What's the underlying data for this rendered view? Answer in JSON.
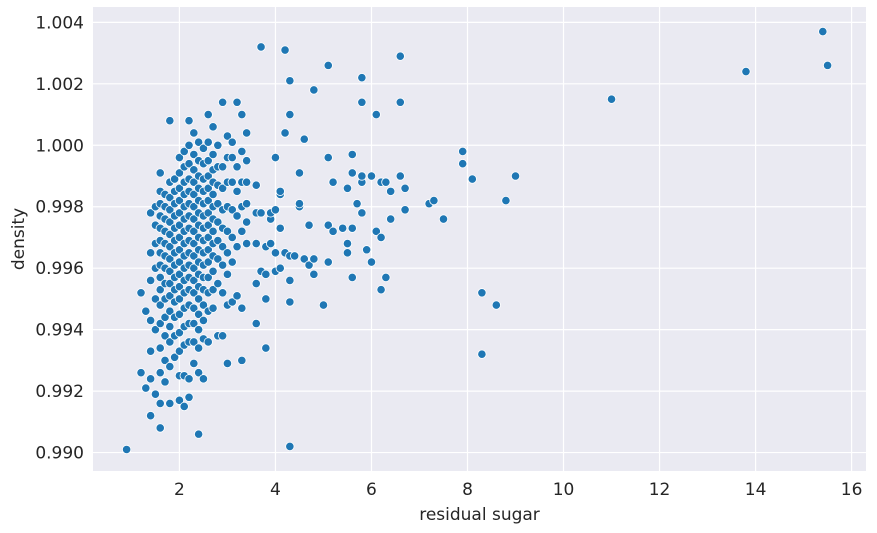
{
  "chart_data": {
    "type": "scatter",
    "title": "",
    "xlabel": "residual sugar",
    "ylabel": "density",
    "xlim": [
      0.2,
      16.3
    ],
    "ylim": [
      0.9894,
      1.0045
    ],
    "grid": true,
    "x_ticks": [
      2,
      4,
      6,
      8,
      10,
      12,
      14,
      16
    ],
    "y_ticks": [
      0.99,
      0.992,
      0.994,
      0.996,
      0.998,
      1.0,
      1.002,
      1.004
    ],
    "x_tick_labels": [
      "2",
      "4",
      "6",
      "8",
      "10",
      "12",
      "14",
      "16"
    ],
    "y_tick_labels": [
      "0.990",
      "0.992",
      "0.994",
      "0.996",
      "0.998",
      "1.000",
      "1.002",
      "1.004"
    ],
    "marker_color": "#1f77b4",
    "background_color": "#eaeaf2",
    "points": [
      [
        0.9,
        0.9901
      ],
      [
        1.2,
        0.9926
      ],
      [
        1.2,
        0.9952
      ],
      [
        1.3,
        0.9946
      ],
      [
        1.3,
        0.9921
      ],
      [
        1.4,
        0.9912
      ],
      [
        1.4,
        0.9924
      ],
      [
        1.4,
        0.9933
      ],
      [
        1.4,
        0.9943
      ],
      [
        1.4,
        0.9956
      ],
      [
        1.4,
        0.9965
      ],
      [
        1.4,
        0.9978
      ],
      [
        1.5,
        0.9919
      ],
      [
        1.5,
        0.994
      ],
      [
        1.5,
        0.995
      ],
      [
        1.5,
        0.996
      ],
      [
        1.5,
        0.9968
      ],
      [
        1.5,
        0.9974
      ],
      [
        1.5,
        0.998
      ],
      [
        1.6,
        0.9908
      ],
      [
        1.6,
        0.9916
      ],
      [
        1.6,
        0.9926
      ],
      [
        1.6,
        0.9934
      ],
      [
        1.6,
        0.9942
      ],
      [
        1.6,
        0.9948
      ],
      [
        1.6,
        0.9953
      ],
      [
        1.6,
        0.9957
      ],
      [
        1.6,
        0.9961
      ],
      [
        1.6,
        0.9965
      ],
      [
        1.6,
        0.9969
      ],
      [
        1.6,
        0.9973
      ],
      [
        1.6,
        0.9977
      ],
      [
        1.6,
        0.9981
      ],
      [
        1.6,
        0.9985
      ],
      [
        1.6,
        0.9991
      ],
      [
        1.7,
        0.9923
      ],
      [
        1.7,
        0.993
      ],
      [
        1.7,
        0.9938
      ],
      [
        1.7,
        0.9944
      ],
      [
        1.7,
        0.995
      ],
      [
        1.7,
        0.9955
      ],
      [
        1.7,
        0.996
      ],
      [
        1.7,
        0.9964
      ],
      [
        1.7,
        0.9968
      ],
      [
        1.7,
        0.9972
      ],
      [
        1.7,
        0.9976
      ],
      [
        1.7,
        0.998
      ],
      [
        1.7,
        0.9984
      ],
      [
        1.8,
        0.9916
      ],
      [
        1.8,
        0.9928
      ],
      [
        1.8,
        0.9936
      ],
      [
        1.8,
        0.9941
      ],
      [
        1.8,
        0.9946
      ],
      [
        1.8,
        0.9951
      ],
      [
        1.8,
        0.9955
      ],
      [
        1.8,
        0.9959
      ],
      [
        1.8,
        0.9963
      ],
      [
        1.8,
        0.9967
      ],
      [
        1.8,
        0.9971
      ],
      [
        1.8,
        0.9975
      ],
      [
        1.8,
        0.9979
      ],
      [
        1.8,
        0.9983
      ],
      [
        1.8,
        0.9988
      ],
      [
        1.8,
        1.0008
      ],
      [
        1.9,
        0.9931
      ],
      [
        1.9,
        0.9938
      ],
      [
        1.9,
        0.9944
      ],
      [
        1.9,
        0.9949
      ],
      [
        1.9,
        0.9953
      ],
      [
        1.9,
        0.9957
      ],
      [
        1.9,
        0.9961
      ],
      [
        1.9,
        0.9965
      ],
      [
        1.9,
        0.9969
      ],
      [
        1.9,
        0.9973
      ],
      [
        1.9,
        0.9977
      ],
      [
        1.9,
        0.9981
      ],
      [
        1.9,
        0.9985
      ],
      [
        1.9,
        0.9989
      ],
      [
        2.0,
        0.9917
      ],
      [
        2.0,
        0.9925
      ],
      [
        2.0,
        0.9933
      ],
      [
        2.0,
        0.9939
      ],
      [
        2.0,
        0.9945
      ],
      [
        2.0,
        0.995
      ],
      [
        2.0,
        0.9954
      ],
      [
        2.0,
        0.9958
      ],
      [
        2.0,
        0.9962
      ],
      [
        2.0,
        0.9966
      ],
      [
        2.0,
        0.997
      ],
      [
        2.0,
        0.9974
      ],
      [
        2.0,
        0.9978
      ],
      [
        2.0,
        0.9982
      ],
      [
        2.0,
        0.9986
      ],
      [
        2.0,
        0.9991
      ],
      [
        2.0,
        0.9996
      ],
      [
        2.1,
        0.9915
      ],
      [
        2.1,
        0.9925
      ],
      [
        2.1,
        0.9935
      ],
      [
        2.1,
        0.9941
      ],
      [
        2.1,
        0.9947
      ],
      [
        2.1,
        0.9952
      ],
      [
        2.1,
        0.9956
      ],
      [
        2.1,
        0.996
      ],
      [
        2.1,
        0.9964
      ],
      [
        2.1,
        0.9968
      ],
      [
        2.1,
        0.9972
      ],
      [
        2.1,
        0.9976
      ],
      [
        2.1,
        0.998
      ],
      [
        2.1,
        0.9984
      ],
      [
        2.1,
        0.9988
      ],
      [
        2.1,
        0.9993
      ],
      [
        2.1,
        0.9998
      ],
      [
        2.2,
        0.9918
      ],
      [
        2.2,
        0.9924
      ],
      [
        2.2,
        0.9936
      ],
      [
        2.2,
        0.9942
      ],
      [
        2.2,
        0.9948
      ],
      [
        2.2,
        0.9953
      ],
      [
        2.2,
        0.9957
      ],
      [
        2.2,
        0.9961
      ],
      [
        2.2,
        0.9965
      ],
      [
        2.2,
        0.9969
      ],
      [
        2.2,
        0.9973
      ],
      [
        2.2,
        0.9977
      ],
      [
        2.2,
        0.9981
      ],
      [
        2.2,
        0.9985
      ],
      [
        2.2,
        0.9989
      ],
      [
        2.2,
        0.9994
      ],
      [
        2.2,
        1.0
      ],
      [
        2.2,
        1.0008
      ],
      [
        2.3,
        0.9929
      ],
      [
        2.3,
        0.9936
      ],
      [
        2.3,
        0.9942
      ],
      [
        2.3,
        0.9947
      ],
      [
        2.3,
        0.9952
      ],
      [
        2.3,
        0.9956
      ],
      [
        2.3,
        0.996
      ],
      [
        2.3,
        0.9964
      ],
      [
        2.3,
        0.9968
      ],
      [
        2.3,
        0.9972
      ],
      [
        2.3,
        0.9976
      ],
      [
        2.3,
        0.998
      ],
      [
        2.3,
        0.9984
      ],
      [
        2.3,
        0.9988
      ],
      [
        2.3,
        0.9992
      ],
      [
        2.3,
        0.9997
      ],
      [
        2.3,
        1.0004
      ],
      [
        2.4,
        0.9906
      ],
      [
        2.4,
        0.9926
      ],
      [
        2.4,
        0.9934
      ],
      [
        2.4,
        0.994
      ],
      [
        2.4,
        0.9945
      ],
      [
        2.4,
        0.995
      ],
      [
        2.4,
        0.9954
      ],
      [
        2.4,
        0.9958
      ],
      [
        2.4,
        0.9962
      ],
      [
        2.4,
        0.9966
      ],
      [
        2.4,
        0.997
      ],
      [
        2.4,
        0.9974
      ],
      [
        2.4,
        0.9978
      ],
      [
        2.4,
        0.9982
      ],
      [
        2.4,
        0.9986
      ],
      [
        2.4,
        0.999
      ],
      [
        2.4,
        0.9995
      ],
      [
        2.4,
        1.0001
      ],
      [
        2.5,
        0.9924
      ],
      [
        2.5,
        0.9937
      ],
      [
        2.5,
        0.9943
      ],
      [
        2.5,
        0.9948
      ],
      [
        2.5,
        0.9953
      ],
      [
        2.5,
        0.9957
      ],
      [
        2.5,
        0.9961
      ],
      [
        2.5,
        0.9965
      ],
      [
        2.5,
        0.9969
      ],
      [
        2.5,
        0.9973
      ],
      [
        2.5,
        0.9977
      ],
      [
        2.5,
        0.9981
      ],
      [
        2.5,
        0.9985
      ],
      [
        2.5,
        0.9989
      ],
      [
        2.5,
        0.9994
      ],
      [
        2.5,
        0.9999
      ],
      [
        2.6,
        0.9936
      ],
      [
        2.6,
        0.9946
      ],
      [
        2.6,
        0.9952
      ],
      [
        2.6,
        0.9957
      ],
      [
        2.6,
        0.9962
      ],
      [
        2.6,
        0.9966
      ],
      [
        2.6,
        0.997
      ],
      [
        2.6,
        0.9974
      ],
      [
        2.6,
        0.9978
      ],
      [
        2.6,
        0.9982
      ],
      [
        2.6,
        0.9986
      ],
      [
        2.6,
        0.999
      ],
      [
        2.6,
        0.9995
      ],
      [
        2.6,
        1.0001
      ],
      [
        2.6,
        1.001
      ],
      [
        2.7,
        0.9947
      ],
      [
        2.7,
        0.9953
      ],
      [
        2.7,
        0.9959
      ],
      [
        2.7,
        0.9964
      ],
      [
        2.7,
        0.9968
      ],
      [
        2.7,
        0.9972
      ],
      [
        2.7,
        0.9976
      ],
      [
        2.7,
        0.998
      ],
      [
        2.7,
        0.9984
      ],
      [
        2.7,
        0.9988
      ],
      [
        2.7,
        0.9992
      ],
      [
        2.7,
        0.9997
      ],
      [
        2.7,
        1.0006
      ],
      [
        2.8,
        0.9938
      ],
      [
        2.8,
        0.9955
      ],
      [
        2.8,
        0.9963
      ],
      [
        2.8,
        0.9969
      ],
      [
        2.8,
        0.9975
      ],
      [
        2.8,
        0.9981
      ],
      [
        2.8,
        0.9987
      ],
      [
        2.8,
        0.9993
      ],
      [
        2.8,
        1.0
      ],
      [
        2.9,
        0.9938
      ],
      [
        2.9,
        0.9952
      ],
      [
        2.9,
        0.9961
      ],
      [
        2.9,
        0.9967
      ],
      [
        2.9,
        0.9973
      ],
      [
        2.9,
        0.9979
      ],
      [
        2.9,
        0.9986
      ],
      [
        2.9,
        0.9993
      ],
      [
        2.9,
        1.0014
      ],
      [
        3.0,
        0.9929
      ],
      [
        3.0,
        0.9948
      ],
      [
        3.0,
        0.9958
      ],
      [
        3.0,
        0.9965
      ],
      [
        3.0,
        0.9972
      ],
      [
        3.0,
        0.998
      ],
      [
        3.0,
        0.9988
      ],
      [
        3.0,
        0.9996
      ],
      [
        3.0,
        1.0003
      ],
      [
        3.1,
        0.9949
      ],
      [
        3.1,
        0.9962
      ],
      [
        3.1,
        0.997
      ],
      [
        3.1,
        0.9979
      ],
      [
        3.1,
        0.9988
      ],
      [
        3.1,
        0.9996
      ],
      [
        3.1,
        1.0001
      ],
      [
        3.2,
        0.9951
      ],
      [
        3.2,
        0.9967
      ],
      [
        3.2,
        0.9977
      ],
      [
        3.2,
        0.9985
      ],
      [
        3.2,
        0.9993
      ],
      [
        3.2,
        1.0014
      ],
      [
        3.3,
        0.993
      ],
      [
        3.3,
        0.9947
      ],
      [
        3.3,
        0.9972
      ],
      [
        3.3,
        0.998
      ],
      [
        3.3,
        0.9988
      ],
      [
        3.3,
        0.9998
      ],
      [
        3.3,
        1.001
      ],
      [
        3.4,
        0.9968
      ],
      [
        3.4,
        0.9975
      ],
      [
        3.4,
        0.9981
      ],
      [
        3.4,
        0.9988
      ],
      [
        3.4,
        0.9995
      ],
      [
        3.4,
        1.0004
      ],
      [
        3.6,
        0.9942
      ],
      [
        3.6,
        0.9955
      ],
      [
        3.6,
        0.9968
      ],
      [
        3.6,
        0.9978
      ],
      [
        3.6,
        0.9987
      ],
      [
        3.7,
        0.9959
      ],
      [
        3.7,
        0.9978
      ],
      [
        3.7,
        1.0032
      ],
      [
        3.8,
        0.9934
      ],
      [
        3.8,
        0.995
      ],
      [
        3.8,
        0.9958
      ],
      [
        3.8,
        0.9967
      ],
      [
        3.9,
        0.9968
      ],
      [
        3.9,
        0.9976
      ],
      [
        3.9,
        0.9978
      ],
      [
        4.0,
        0.9959
      ],
      [
        4.0,
        0.9965
      ],
      [
        4.0,
        0.9979
      ],
      [
        4.0,
        0.9996
      ],
      [
        4.1,
        0.996
      ],
      [
        4.1,
        0.9973
      ],
      [
        4.1,
        0.9984
      ],
      [
        4.1,
        0.9985
      ],
      [
        4.2,
        0.9965
      ],
      [
        4.2,
        1.0004
      ],
      [
        4.2,
        1.0031
      ],
      [
        4.3,
        0.9902
      ],
      [
        4.3,
        0.9949
      ],
      [
        4.3,
        0.9956
      ],
      [
        4.3,
        0.9964
      ],
      [
        4.3,
        1.001
      ],
      [
        4.3,
        1.0021
      ],
      [
        4.4,
        0.9964
      ],
      [
        4.5,
        0.998
      ],
      [
        4.5,
        0.9981
      ],
      [
        4.5,
        0.9991
      ],
      [
        4.6,
        0.9963
      ],
      [
        4.6,
        1.0002
      ],
      [
        4.7,
        0.9961
      ],
      [
        4.7,
        0.9974
      ],
      [
        4.8,
        0.9958
      ],
      [
        4.8,
        0.9963
      ],
      [
        4.8,
        1.0018
      ],
      [
        5.0,
        0.9948
      ],
      [
        5.1,
        0.9962
      ],
      [
        5.1,
        0.9974
      ],
      [
        5.1,
        0.9996
      ],
      [
        5.1,
        1.0026
      ],
      [
        5.2,
        0.9972
      ],
      [
        5.2,
        0.9988
      ],
      [
        5.4,
        0.9973
      ],
      [
        5.5,
        0.9965
      ],
      [
        5.5,
        0.9968
      ],
      [
        5.5,
        0.9986
      ],
      [
        5.6,
        0.9957
      ],
      [
        5.6,
        0.9973
      ],
      [
        5.6,
        0.9991
      ],
      [
        5.6,
        0.9997
      ],
      [
        5.7,
        0.9981
      ],
      [
        5.8,
        0.9978
      ],
      [
        5.8,
        0.9988
      ],
      [
        5.8,
        0.999
      ],
      [
        5.8,
        1.0014
      ],
      [
        5.8,
        1.0022
      ],
      [
        5.9,
        0.9966
      ],
      [
        6.0,
        0.9962
      ],
      [
        6.0,
        0.999
      ],
      [
        6.1,
        0.9972
      ],
      [
        6.1,
        1.001
      ],
      [
        6.2,
        0.9953
      ],
      [
        6.2,
        0.997
      ],
      [
        6.2,
        0.9988
      ],
      [
        6.3,
        0.9957
      ],
      [
        6.3,
        0.9988
      ],
      [
        6.4,
        0.9976
      ],
      [
        6.4,
        0.9985
      ],
      [
        6.6,
        0.999
      ],
      [
        6.6,
        1.0014
      ],
      [
        6.6,
        1.0029
      ],
      [
        6.7,
        0.9979
      ],
      [
        6.7,
        0.9986
      ],
      [
        7.2,
        0.9981
      ],
      [
        7.3,
        0.9982
      ],
      [
        7.5,
        0.9976
      ],
      [
        7.9,
        0.9994
      ],
      [
        7.9,
        0.9998
      ],
      [
        8.1,
        0.9989
      ],
      [
        8.3,
        0.9932
      ],
      [
        8.3,
        0.9952
      ],
      [
        8.6,
        0.9948
      ],
      [
        8.8,
        0.9982
      ],
      [
        9.0,
        0.999
      ],
      [
        11.0,
        1.0015
      ],
      [
        13.8,
        1.0024
      ],
      [
        15.4,
        1.0037
      ],
      [
        15.5,
        1.0026
      ]
    ]
  }
}
